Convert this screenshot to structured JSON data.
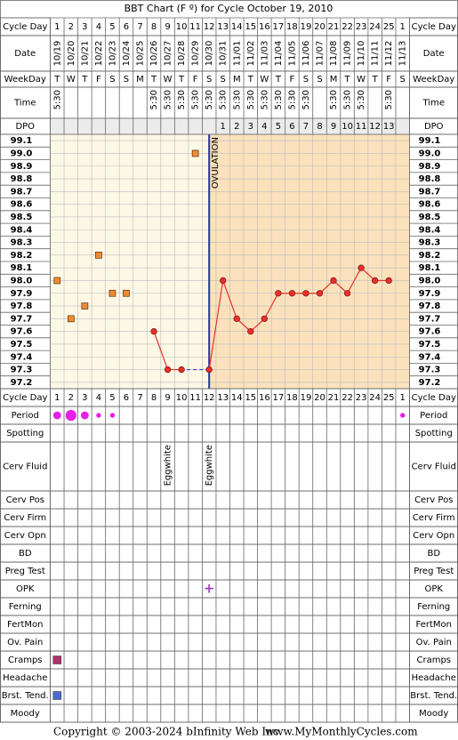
{
  "title": "BBT Chart (F º) for Cycle October 19, 2010",
  "row_labels": {
    "top": [
      "Cycle Day",
      "Date",
      "WeekDay",
      "Time",
      "DPO"
    ],
    "bottom": [
      "Period",
      "Spotting",
      "Cerv Fluid",
      "Cerv Pos",
      "Cerv Firm",
      "Cerv Opn",
      "BD",
      "Preg Test",
      "OPK",
      "Ferning",
      "FertMon",
      "Ov. Pain",
      "Cramps",
      "Headache",
      "Brst. Tend.",
      "Moody"
    ]
  },
  "columns": {
    "cycle_day": [
      1,
      2,
      3,
      4,
      5,
      6,
      7,
      8,
      9,
      10,
      11,
      12,
      13,
      14,
      15,
      16,
      17,
      18,
      19,
      20,
      21,
      22,
      23,
      24,
      25,
      1
    ],
    "date": [
      "10/19",
      "10/20",
      "10/21",
      "10/22",
      "10/23",
      "10/24",
      "10/25",
      "10/26",
      "10/27",
      "10/28",
      "10/29",
      "10/30",
      "10/31",
      "11/01",
      "11/02",
      "11/03",
      "11/04",
      "11/05",
      "11/06",
      "11/07",
      "11/08",
      "11/09",
      "11/10",
      "11/11",
      "11/12",
      "11/13"
    ],
    "weekday": [
      "T",
      "W",
      "T",
      "F",
      "S",
      "S",
      "M",
      "T",
      "W",
      "T",
      "F",
      "S",
      "S",
      "M",
      "T",
      "W",
      "T",
      "F",
      "S",
      "S",
      "M",
      "T",
      "W",
      "T",
      "F",
      "S"
    ],
    "time": [
      "5:30",
      null,
      null,
      null,
      null,
      null,
      null,
      "5:30",
      "5:30",
      "5:30",
      "5:30",
      "5:30",
      "5:30",
      "5:30",
      "5:30",
      "5:30",
      "5:30",
      "5:30",
      "5:30",
      null,
      "5:30",
      "5:30",
      "5:30",
      null,
      "5:30",
      null
    ],
    "dpo": [
      null,
      null,
      null,
      null,
      null,
      null,
      null,
      null,
      null,
      null,
      null,
      null,
      1,
      2,
      3,
      4,
      5,
      6,
      7,
      8,
      9,
      10,
      11,
      12,
      13,
      null
    ]
  },
  "chart_data": {
    "type": "line",
    "ylim": [
      97.15,
      99.15
    ],
    "yticks": [
      99.1,
      {
        "value": 99,
        "label": "99.0"
      },
      98.9,
      98.8,
      98.7,
      98.6,
      98.5,
      98.4,
      98.3,
      98.2,
      98.1,
      {
        "value": 98,
        "label": "98.0"
      },
      97.9,
      97.8,
      97.7,
      97.6,
      97.5,
      97.4,
      97.3,
      97.2
    ],
    "grid": true,
    "series": [
      {
        "color": "#e8302a",
        "marker": "circle",
        "values": [
          null,
          null,
          null,
          null,
          null,
          null,
          null,
          97.6,
          97.3,
          97.3,
          null,
          97.3,
          98.0,
          97.7,
          97.6,
          97.7,
          97.9,
          97.9,
          97.9,
          97.9,
          98.0,
          97.9,
          98.1,
          98.0,
          98.0,
          null
        ]
      },
      {
        "color": "#f08a30",
        "marker": "square",
        "values": [
          98.0,
          97.7,
          97.8,
          98.2,
          97.9,
          97.9,
          null,
          null,
          null,
          null,
          99.0,
          null,
          null,
          null,
          null,
          null,
          null,
          null,
          null,
          null,
          null,
          null,
          null,
          null,
          null,
          null
        ]
      }
    ],
    "coverline": {
      "value": 97.3,
      "color": "#3344cc"
    },
    "ovulation": {
      "label": "OVULATION",
      "cycle_day": 12,
      "color": "#2233aa"
    }
  },
  "observations": {
    "period": {
      "color": "#e81ee8",
      "values": [
        2,
        3,
        2,
        1,
        1,
        null,
        null,
        null,
        null,
        null,
        null,
        null,
        null,
        null,
        null,
        null,
        null,
        null,
        null,
        null,
        null,
        null,
        null,
        null,
        null,
        1
      ]
    },
    "cerv_fluid": [
      null,
      null,
      null,
      null,
      null,
      null,
      null,
      null,
      "Eggwhite",
      null,
      null,
      "Eggwhite",
      null,
      null,
      null,
      null,
      null,
      null,
      null,
      null,
      null,
      null,
      null,
      null,
      null,
      null
    ],
    "opk": {
      "color": "#9b3fcf",
      "values": [
        null,
        null,
        null,
        null,
        null,
        null,
        null,
        null,
        null,
        null,
        null,
        "+",
        null,
        null,
        null,
        null,
        null,
        null,
        null,
        null,
        null,
        null,
        null,
        null,
        null,
        null
      ]
    },
    "cramps": {
      "color": "#b0306a",
      "values": [
        1,
        null,
        null,
        null,
        null,
        null,
        null,
        null,
        null,
        null,
        null,
        null,
        null,
        null,
        null,
        null,
        null,
        null,
        null,
        null,
        null,
        null,
        null,
        null,
        null,
        null
      ]
    },
    "breast_tenderness": {
      "color": "#4a6ad8",
      "values": [
        1,
        null,
        null,
        null,
        null,
        null,
        null,
        null,
        null,
        null,
        null,
        null,
        null,
        null,
        null,
        null,
        null,
        null,
        null,
        null,
        null,
        null,
        null,
        null,
        null,
        null
      ]
    }
  },
  "footer": {
    "copyright": "Copyright © 2003-2024 bInfinity Web Inc.",
    "site": "www.MyMonthlyCycles.com"
  }
}
